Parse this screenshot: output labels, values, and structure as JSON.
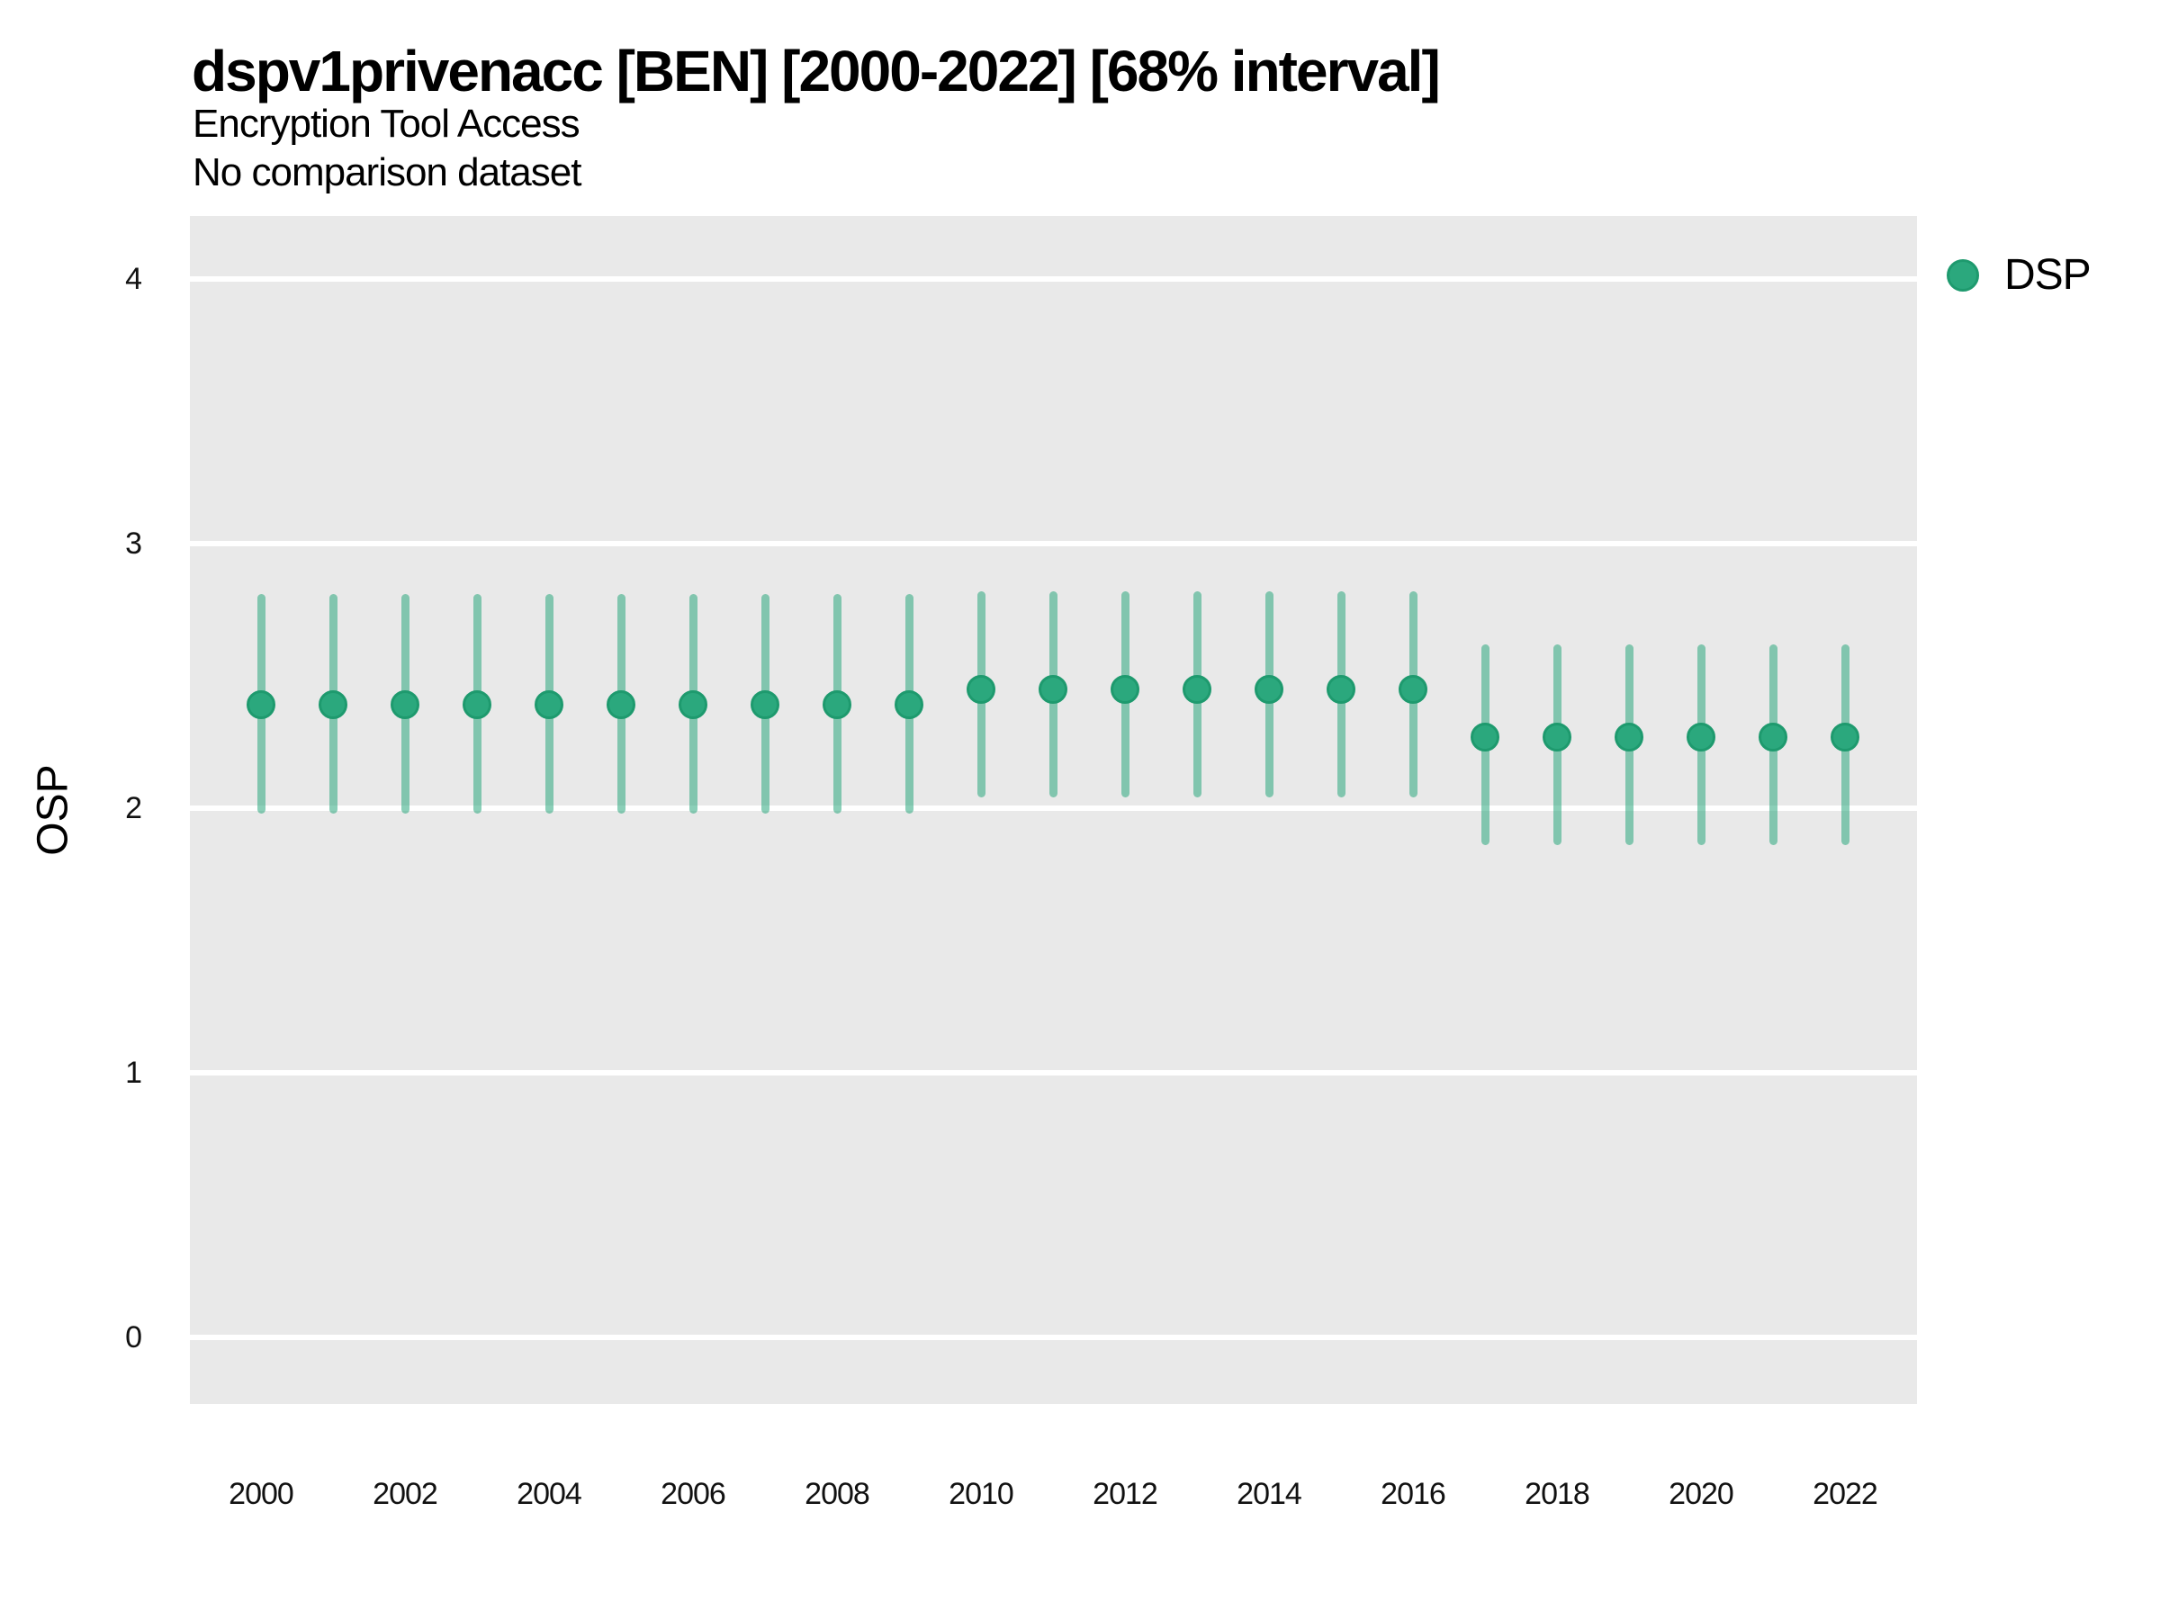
{
  "title": "dspv1privenacc [BEN] [2000-2022] [68% interval]",
  "subtitle": "Encryption Tool Access",
  "comparison_note": "No comparison dataset",
  "legend": {
    "position": "right",
    "items": [
      {
        "label": "DSP",
        "marker": "circle-icon",
        "color": "#2ba87d"
      }
    ]
  },
  "y_axis": {
    "label": "OSP",
    "ticks": [
      0,
      1,
      2,
      3,
      4
    ]
  },
  "x_axis": {
    "label": "",
    "ticks": [
      2000,
      2002,
      2004,
      2006,
      2008,
      2010,
      2012,
      2014,
      2016,
      2018,
      2020,
      2022
    ]
  },
  "colors": {
    "accent": "#2ba87d",
    "accent_ring": "#1e9a6e",
    "interval_line": "rgba(43,168,125,0.55)",
    "panel_background": "#e9e9e9",
    "gridline": "#ffffff",
    "text": "#000000"
  },
  "chart_data": {
    "type": "scatter",
    "title": "dspv1privenacc [BEN] [2000-2022] [68% interval]",
    "subtitle": "Encryption Tool Access",
    "note": "No comparison dataset",
    "xlabel": "",
    "ylabel": "OSP",
    "xlim": [
      1999,
      2023
    ],
    "ylim": [
      -0.25,
      4.25
    ],
    "grid": "major horizontal white lines on grey panel, no minor gridlines",
    "legend_position": "right",
    "interval": "68%",
    "series": [
      {
        "name": "DSP",
        "color": "#2ba87d",
        "x": [
          2000,
          2001,
          2002,
          2003,
          2004,
          2005,
          2006,
          2007,
          2008,
          2009,
          2010,
          2011,
          2012,
          2013,
          2014,
          2015,
          2016,
          2017,
          2018,
          2019,
          2020,
          2021,
          2022
        ],
        "y": [
          2.39,
          2.39,
          2.39,
          2.39,
          2.39,
          2.39,
          2.39,
          2.39,
          2.39,
          2.39,
          2.45,
          2.45,
          2.45,
          2.45,
          2.45,
          2.45,
          2.45,
          2.27,
          2.27,
          2.27,
          2.27,
          2.27,
          2.27
        ],
        "y_lo": [
          1.98,
          1.98,
          1.98,
          1.98,
          1.98,
          1.98,
          1.98,
          1.98,
          1.98,
          1.98,
          2.04,
          2.04,
          2.04,
          2.04,
          2.04,
          2.04,
          2.04,
          1.86,
          1.86,
          1.86,
          1.86,
          1.86,
          1.86
        ],
        "y_hi": [
          2.81,
          2.81,
          2.81,
          2.81,
          2.81,
          2.81,
          2.81,
          2.81,
          2.81,
          2.81,
          2.82,
          2.82,
          2.82,
          2.82,
          2.82,
          2.82,
          2.82,
          2.62,
          2.62,
          2.62,
          2.62,
          2.62,
          2.62
        ]
      }
    ]
  }
}
